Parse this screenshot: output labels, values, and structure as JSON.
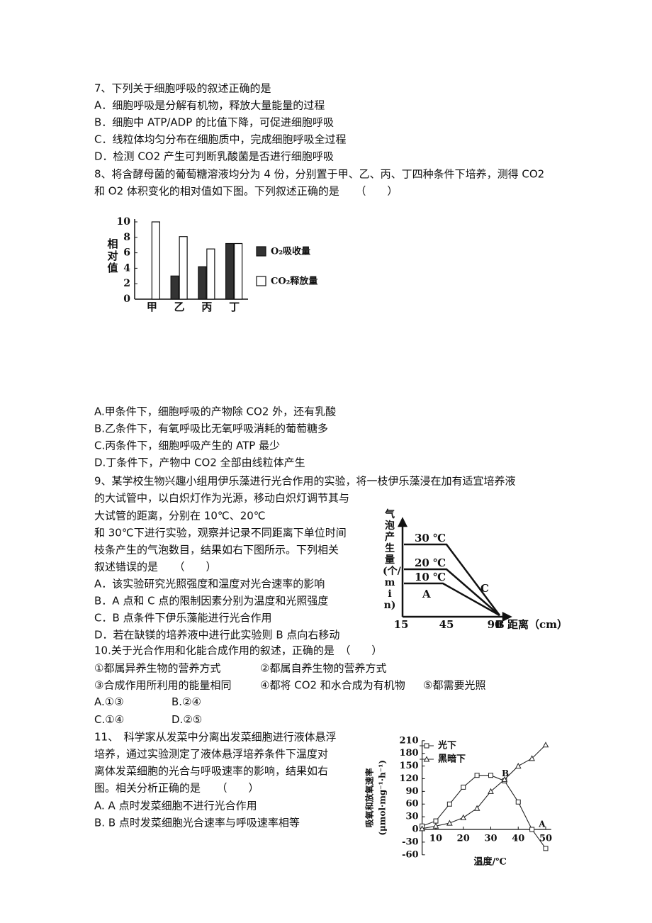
{
  "questions": [
    {
      "lines": [
        "7、下列关于细胞呼吸的叙述正确的是",
        "A．细胞呼吸是分解有机物，释放大量能量的过程",
        "B．细胞中 ATP/ADP 的比值下降，可促进细胞呼吸",
        "C．线粒体均匀分布在细胞质中，完成细胞呼吸全过程",
        "D．检测 CO2 产生可判断乳酸菌是否进行细胞呼吸"
      ]
    },
    {
      "lines": [
        "8、将含酵母菌的葡萄糖溶液均分为 4 份，分别置于甲、乙、丙、丁四种条件下培养，测得 CO2",
        "和 O2 体积变化的相对值如下图。下列叙述正确的是　　（　　）",
        "A.甲条件下，细胞呼吸的产物除 CO2 外，还有乳酸",
        "B.乙条件下，有氧呼吸比无氧呼吸消耗的葡萄糖多",
        "C.丙条件下，细胞呼吸产生的 ATP 最少",
        "D.丁条件下，产物中 CO2 全部由线粒体产生"
      ]
    },
    {
      "lines": [
        "9、某学校生物兴趣小组用伊乐藻进行光合作用的实验，将一枝伊乐藻浸在加有适宜培养液",
        "的大试管中，以白炽灯作为光源，移动白炽灯调节其与",
        "大试管的距离，分别在 10℃、20℃",
        "和 30℃下进行实验，观察并记录不同距离下单位时间",
        "枝条产生的气泡数目，结果如右下图所示。下列相关",
        "叙述错误的是　　（　　）",
        "A．该实验研究光照强度和温度对光合速率的影响",
        "B．A 点和 C 点的限制因素分别为温度和光照强度",
        "C．B 点条件下伊乐藻能进行光合作用",
        "D．若在缺镁的培养液中进行此实验则 B 点向右移动"
      ]
    },
    {
      "lines": [
        "10.关于光合作用和化能合成作用的叙述，正确的是　（　　）",
        [
          "①都属异养生物的营养方式",
          "②都属自养生物的营养方式"
        ],
        [
          "③合成作用所利用的能量相同",
          "④都将 CO2 和水合成为有机物",
          "⑤都需要光照"
        ],
        [
          "A.①③",
          "B.②④"
        ],
        [
          "C.①④",
          "D.②⑤"
        ]
      ]
    },
    {
      "lines": [
        "11、　科学家从发菜中分离出发菜细胞进行液体悬浮",
        "培养，通过实验测定了液体悬浮培养条件下温度对",
        "离体发菜细胞的光合与呼吸速率的影响，结果如右",
        "图。相关分析正确的是　　（　　）",
        "A. A 点时发菜细胞不进行光合作用",
        "B. B 点时发菜细胞光合速率与呼吸速率相等"
      ]
    }
  ],
  "chart_data": [
    {
      "type": "bar",
      "y_label": "相对值",
      "categories": [
        "甲",
        "乙",
        "丙",
        "丁"
      ],
      "series": [
        {
          "name": "O₂吸收量",
          "color": "#333333",
          "values": [
            0,
            3,
            4.2,
            7.2
          ]
        },
        {
          "name": "CO₂释放量",
          "color": "#ffffff",
          "values": [
            10,
            8.1,
            6.5,
            7.2
          ]
        }
      ],
      "ylim": [
        0,
        10
      ],
      "yticks": [
        0,
        2,
        4,
        6,
        8,
        10
      ]
    },
    {
      "type": "line",
      "y_label": [
        "吸氧和放氧速率",
        "(μmol·mg⁻¹·h⁻¹)"
      ],
      "x_label": "温度/℃",
      "x": [
        5,
        10,
        15,
        20,
        25,
        30,
        35,
        40,
        45,
        50
      ],
      "series": [
        {
          "name": "光下",
          "color": "#222222",
          "marker": "square",
          "values": [
            8,
            20,
            60,
            100,
            128,
            128,
            115,
            65,
            0,
            -45
          ]
        },
        {
          "name": "黑暗下",
          "color": "#222222",
          "marker": "triangle",
          "values": [
            2,
            8,
            15,
            28,
            50,
            90,
            118,
            150,
            168,
            200
          ]
        }
      ],
      "annotations": [
        "A",
        "B"
      ],
      "xlim": [
        5,
        52
      ],
      "xticks": [
        10,
        20,
        30,
        40,
        50
      ],
      "ylim": [
        -60,
        210
      ],
      "yticks": [
        -60,
        -30,
        0,
        30,
        60,
        90,
        120,
        150,
        180,
        210
      ]
    }
  ],
  "diagram": {
    "y_label": "气泡产生量(个/min)",
    "x_label": "距离（cm）",
    "x_tick_labels": [
      "15",
      "45",
      "90"
    ],
    "curve_labels": [
      "30 ℃",
      "20 ℃",
      "10 ℃"
    ],
    "points": [
      "A",
      "C",
      "B"
    ]
  }
}
